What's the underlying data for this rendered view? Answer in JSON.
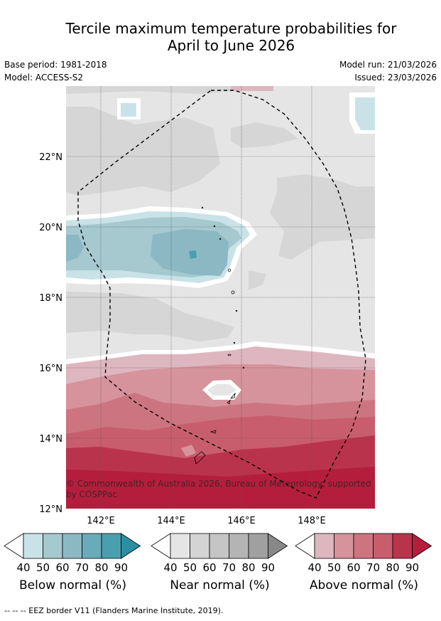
{
  "title_line1": "Tercile maximum temperature probabilities for",
  "title_line2": "April to June 2026",
  "base_period": "Base period: 1981-2018",
  "model": "Model: ACCESS-S2",
  "model_run": "Model run: 21/03/2026",
  "issued": "Issued: 23/03/2026",
  "copyright_line1": "© Commonwealth of Australia 2026, Bureau of Meteorology, supported",
  "copyright_line2": "by COSPPac",
  "lat_labels": [
    "22°N",
    "20°N",
    "18°N",
    "16°N",
    "14°N",
    "12°N"
  ],
  "lon_labels": [
    "142°E",
    "144°E",
    "146°E",
    "148°E"
  ],
  "colorbars": [
    {
      "label": "Below normal (%)",
      "ticks": [
        "40",
        "50",
        "60",
        "70",
        "80",
        "90"
      ],
      "colors": [
        "#ffffff",
        "#c9e2e8",
        "#a5c9cf",
        "#8cb8c4",
        "#69abb9",
        "#4a9fae",
        "#2b8fa3"
      ]
    },
    {
      "label": "Near normal (%)",
      "ticks": [
        "40",
        "50",
        "60",
        "70",
        "80",
        "90"
      ],
      "colors": [
        "#ffffff",
        "#e5e5e5",
        "#d4d4d4",
        "#c5c5c5",
        "#b4b4b4",
        "#a0a0a0",
        "#888888"
      ]
    },
    {
      "label": "Above normal (%)",
      "ticks": [
        "40",
        "50",
        "60",
        "70",
        "80",
        "90"
      ],
      "colors": [
        "#ffffff",
        "#deb6bf",
        "#d6939c",
        "#cc7580",
        "#c85e6d",
        "#ba334d",
        "#b41e3c"
      ]
    }
  ],
  "legend_footer": "--  --  -- EEZ border V11 (Flanders Marine Institute, 2019)."
}
